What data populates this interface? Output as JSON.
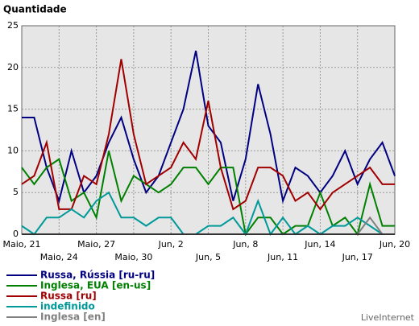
{
  "chart_data": {
    "type": "line",
    "ylabel": "Quantidade",
    "categories": [
      "Maio, 21",
      null,
      null,
      "Maio, 24",
      null,
      null,
      "Maio, 27",
      null,
      null,
      "Maio, 30",
      null,
      null,
      "Jun, 2",
      null,
      null,
      "Jun, 5",
      null,
      null,
      "Jun, 8",
      null,
      null,
      "Jun, 11",
      null,
      null,
      "Jun, 14",
      null,
      null,
      "Jun, 17",
      null,
      null,
      "Jun, 20"
    ],
    "ylim": [
      0,
      25
    ],
    "yticks": [
      0,
      5,
      10,
      15,
      20,
      25
    ],
    "grid": true,
    "legend": "bottom-left",
    "credit": "LiveInternet",
    "series": [
      {
        "name": "Russa, Rússia [ru-ru]",
        "color": "#000080",
        "values": [
          14,
          14,
          8,
          4,
          10,
          5,
          7,
          11,
          14,
          9,
          5,
          7,
          11,
          15,
          22,
          13,
          11,
          4,
          9,
          18,
          12,
          4,
          8,
          7,
          5,
          7,
          10,
          6,
          9,
          11,
          7
        ]
      },
      {
        "name": "Inglesa, EUA [en-us]",
        "color": "#008000",
        "values": [
          8,
          6,
          8,
          9,
          4,
          5,
          2,
          10,
          4,
          7,
          6,
          5,
          6,
          8,
          8,
          6,
          8,
          8,
          0,
          2,
          2,
          0,
          1,
          1,
          5,
          1,
          2,
          0,
          6,
          1,
          1
        ]
      },
      {
        "name": "Russa [ru]",
        "color": "#a00000",
        "values": [
          6,
          7,
          11,
          3,
          3,
          7,
          6,
          12,
          21,
          12,
          6,
          7,
          8,
          11,
          9,
          16,
          8,
          3,
          4,
          8,
          8,
          7,
          4,
          5,
          3,
          5,
          6,
          7,
          8,
          6,
          6
        ]
      },
      {
        "name": "indefinido",
        "color": "#009999",
        "values": [
          1,
          0,
          2,
          2,
          3,
          2,
          4,
          5,
          2,
          2,
          1,
          2,
          2,
          0,
          0,
          1,
          1,
          2,
          0,
          4,
          0,
          2,
          0,
          1,
          0,
          1,
          1,
          2,
          1,
          0,
          0
        ]
      },
      {
        "name": "Inglesa [en]",
        "color": "#808080",
        "values": [
          0,
          0,
          0,
          0,
          0,
          0,
          0,
          0,
          0,
          0,
          0,
          0,
          0,
          0,
          0,
          0,
          0,
          0,
          0,
          0,
          0,
          0,
          0,
          0,
          0,
          0,
          0,
          0,
          2,
          0,
          0
        ]
      }
    ]
  }
}
